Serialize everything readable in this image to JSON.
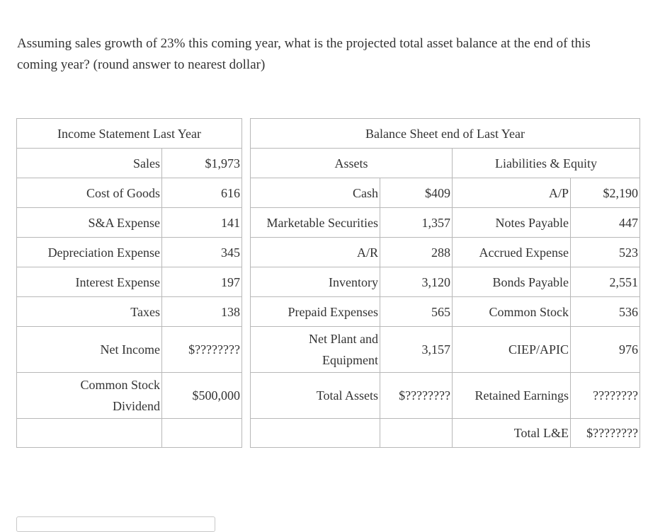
{
  "question": "Assuming sales growth of 23% this coming year, what is the projected total asset balance at the end of this coming year? (round answer to nearest dollar)",
  "income_statement": {
    "header": "Income Statement Last Year",
    "rows": [
      {
        "label": "Sales",
        "value": "$1,973"
      },
      {
        "label": "Cost of Goods",
        "value": "616"
      },
      {
        "label": "S&A Expense",
        "value": "141"
      },
      {
        "label": "Depreciation Expense",
        "value": "345"
      },
      {
        "label": "Interest Expense",
        "value": "197"
      },
      {
        "label": "Taxes",
        "value": "138"
      },
      {
        "label": "Net Income",
        "value": "$????????"
      },
      {
        "label": "Common Stock Dividend",
        "value": "$500,000"
      }
    ]
  },
  "balance_sheet": {
    "header": "Balance Sheet end of Last Year",
    "assets_header": "Assets",
    "liabilities_header": "Liabilities & Equity",
    "assets": [
      {
        "label": "Cash",
        "value": "$409"
      },
      {
        "label": "Marketable Securities",
        "value": "1,357"
      },
      {
        "label": "A/R",
        "value": "288"
      },
      {
        "label": "Inventory",
        "value": "3,120"
      },
      {
        "label": "Prepaid Expenses",
        "value": "565"
      },
      {
        "label": "Net Plant and Equipment",
        "value": "3,157"
      },
      {
        "label": "Total Assets",
        "value": "$????????"
      }
    ],
    "liabilities": [
      {
        "label": "A/P",
        "value": "$2,190"
      },
      {
        "label": "Notes Payable",
        "value": "447"
      },
      {
        "label": "Accrued Expense",
        "value": "523"
      },
      {
        "label": "Bonds Payable",
        "value": "2,551"
      },
      {
        "label": "Common Stock",
        "value": "536"
      },
      {
        "label": "CIEP/APIC",
        "value": "976"
      },
      {
        "label": "Retained Earnings",
        "value": "????????"
      },
      {
        "label": "Total L&E",
        "value": "$????????"
      }
    ]
  },
  "answer_input": {
    "value": ""
  }
}
